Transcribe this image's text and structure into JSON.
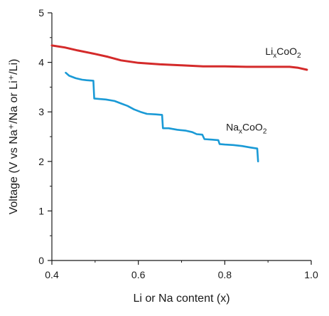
{
  "chart_data": {
    "type": "line",
    "xlabel": "Li or Na content (x)",
    "ylabel": "Voltage (V vs Na⁺/Na or Li⁺/Li)",
    "xlim": [
      0.4,
      1.0
    ],
    "ylim": [
      0,
      5
    ],
    "x_ticks": [
      "0.4",
      "0.6",
      "0.8",
      "1.0"
    ],
    "y_ticks": [
      "0",
      "1",
      "2",
      "3",
      "4",
      "5"
    ],
    "x_tick_values": [
      0.4,
      0.6,
      0.8,
      1.0
    ],
    "y_tick_values": [
      0,
      1,
      2,
      3,
      4,
      5
    ],
    "grid": false,
    "series": [
      {
        "name": "LixCoO2",
        "label_parts": {
          "base1": "Li",
          "sub1": "x",
          "base2": "CoO",
          "sub2": "2"
        },
        "color": "#d42a2a",
        "points": [
          [
            0.4,
            4.34
          ],
          [
            0.43,
            4.3
          ],
          [
            0.46,
            4.24
          ],
          [
            0.5,
            4.17
          ],
          [
            0.53,
            4.11
          ],
          [
            0.56,
            4.04
          ],
          [
            0.6,
            3.99
          ],
          [
            0.65,
            3.96
          ],
          [
            0.7,
            3.94
          ],
          [
            0.75,
            3.92
          ],
          [
            0.8,
            3.92
          ],
          [
            0.85,
            3.91
          ],
          [
            0.9,
            3.91
          ],
          [
            0.95,
            3.91
          ],
          [
            0.97,
            3.89
          ],
          [
            0.99,
            3.85
          ]
        ]
      },
      {
        "name": "NaxCoO2",
        "label_parts": {
          "base1": "Na",
          "sub1": "x",
          "base2": "CoO",
          "sub2": "2"
        },
        "color": "#1a9ad6",
        "points": [
          [
            0.432,
            3.79
          ],
          [
            0.44,
            3.73
          ],
          [
            0.455,
            3.68
          ],
          [
            0.47,
            3.65
          ],
          [
            0.48,
            3.64
          ],
          [
            0.496,
            3.63
          ],
          [
            0.498,
            3.27
          ],
          [
            0.51,
            3.26
          ],
          [
            0.525,
            3.25
          ],
          [
            0.545,
            3.22
          ],
          [
            0.56,
            3.17
          ],
          [
            0.575,
            3.12
          ],
          [
            0.59,
            3.05
          ],
          [
            0.605,
            3.0
          ],
          [
            0.62,
            2.96
          ],
          [
            0.64,
            2.95
          ],
          [
            0.655,
            2.94
          ],
          [
            0.657,
            2.67
          ],
          [
            0.67,
            2.67
          ],
          [
            0.69,
            2.64
          ],
          [
            0.71,
            2.62
          ],
          [
            0.725,
            2.59
          ],
          [
            0.735,
            2.55
          ],
          [
            0.748,
            2.54
          ],
          [
            0.753,
            2.45
          ],
          [
            0.77,
            2.44
          ],
          [
            0.785,
            2.43
          ],
          [
            0.788,
            2.35
          ],
          [
            0.8,
            2.34
          ],
          [
            0.82,
            2.33
          ],
          [
            0.84,
            2.31
          ],
          [
            0.86,
            2.28
          ],
          [
            0.875,
            2.26
          ],
          [
            0.877,
            2.0
          ]
        ]
      }
    ]
  }
}
